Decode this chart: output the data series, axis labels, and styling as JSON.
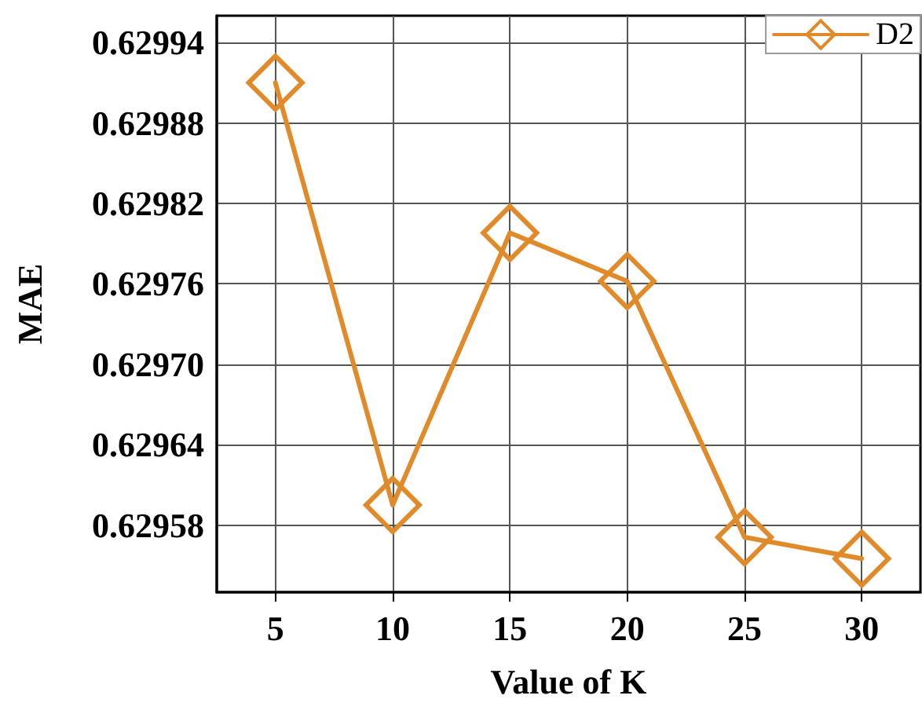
{
  "chart_data": {
    "type": "line",
    "xlabel": "Value of K",
    "ylabel": "MAE",
    "x": [
      5,
      10,
      15,
      20,
      25,
      30
    ],
    "series": [
      {
        "name": "D2",
        "color": "#e08a2a",
        "values": [
          0.62991,
          0.629595,
          0.629798,
          0.629762,
          0.629571,
          0.629555
        ]
      }
    ],
    "xlim": [
      2.5,
      32.5
    ],
    "xticks": [
      5,
      10,
      15,
      20,
      25,
      30
    ],
    "ylim": [
      0.62953,
      0.62996
    ],
    "yticks": [
      0.62958,
      0.62964,
      {
        "value": 0.6297,
        "label": "0.62970"
      },
      0.62976,
      0.62982,
      0.62988,
      0.62994
    ],
    "grid": true,
    "legend": "top right",
    "marker": "diamond",
    "line_style": "solid"
  }
}
